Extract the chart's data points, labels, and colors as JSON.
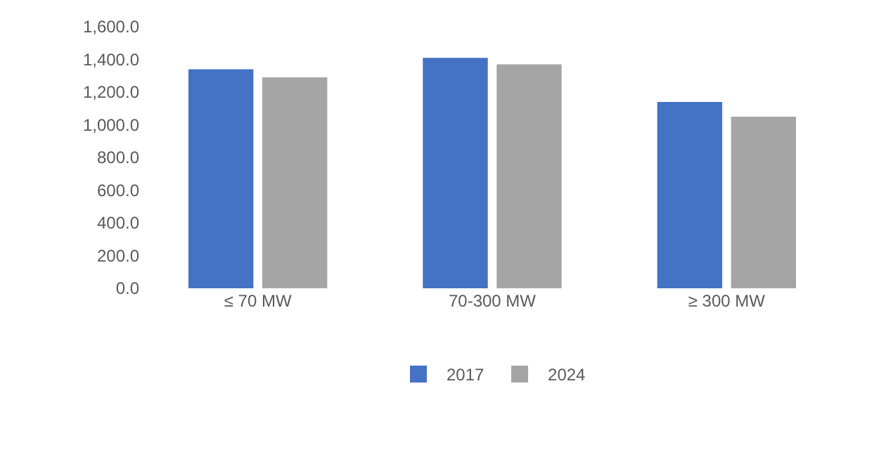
{
  "chart_data": {
    "type": "bar",
    "categories": [
      "≤ 70 MW",
      "70-300 MW",
      "≥ 300 MW"
    ],
    "series": [
      {
        "name": "2017",
        "color": "#4472c4",
        "values": [
          1340,
          1410,
          1140
        ]
      },
      {
        "name": "2024",
        "color": "#a5a5a5",
        "values": [
          1290,
          1370,
          1050
        ]
      }
    ],
    "ylim": [
      0,
      1600
    ],
    "yticks": [
      {
        "value": 0,
        "label": "0.0"
      },
      {
        "value": 200,
        "label": "200.0"
      },
      {
        "value": 400,
        "label": "400.0"
      },
      {
        "value": 600,
        "label": "600.0"
      },
      {
        "value": 800,
        "label": "800.0"
      },
      {
        "value": 1000,
        "label": "1,000.0"
      },
      {
        "value": 1200,
        "label": "1,200.0"
      },
      {
        "value": 1400,
        "label": "1,400.0"
      },
      {
        "value": 1600,
        "label": "1,600.0"
      }
    ],
    "grid": false,
    "legend": "bottom"
  }
}
